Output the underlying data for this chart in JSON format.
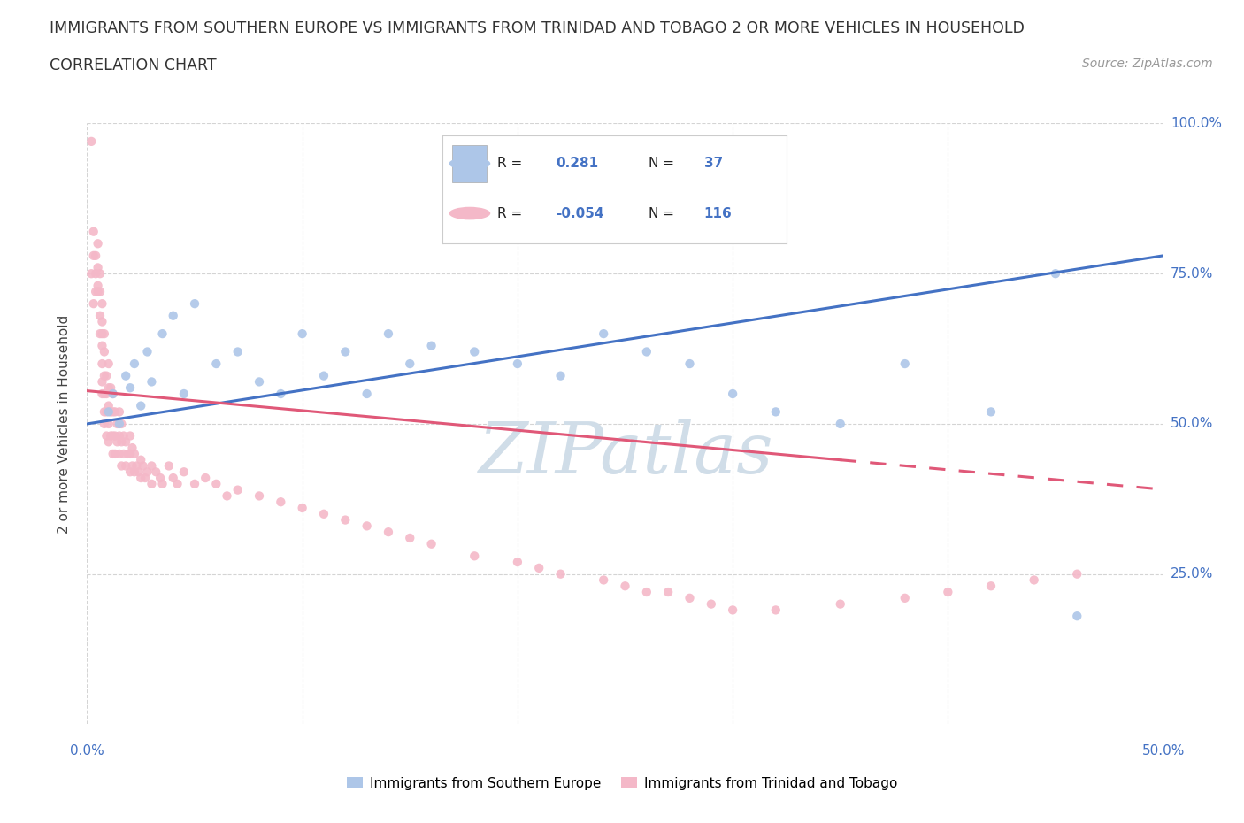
{
  "title_line1": "IMMIGRANTS FROM SOUTHERN EUROPE VS IMMIGRANTS FROM TRINIDAD AND TOBAGO 2 OR MORE VEHICLES IN HOUSEHOLD",
  "title_line2": "CORRELATION CHART",
  "source_text": "Source: ZipAtlas.com",
  "ylabel": "2 or more Vehicles in Household",
  "legend1_label": "Immigrants from Southern Europe",
  "legend2_label": "Immigrants from Trinidad and Tobago",
  "R1": 0.281,
  "N1": 37,
  "R2": -0.054,
  "N2": 116,
  "blue_color": "#adc6e8",
  "blue_line_color": "#4472c4",
  "pink_color": "#f4b8c8",
  "pink_line_color": "#e05878",
  "watermark_color": "#d0dde8",
  "xmin": 0.0,
  "xmax": 0.5,
  "ymin": 0.0,
  "ymax": 1.0,
  "blue_scatter_x": [
    0.01,
    0.012,
    0.015,
    0.018,
    0.02,
    0.022,
    0.025,
    0.028,
    0.03,
    0.035,
    0.04,
    0.045,
    0.05,
    0.06,
    0.07,
    0.08,
    0.09,
    0.1,
    0.11,
    0.12,
    0.13,
    0.14,
    0.15,
    0.16,
    0.18,
    0.2,
    0.22,
    0.24,
    0.26,
    0.28,
    0.3,
    0.32,
    0.35,
    0.38,
    0.42,
    0.45,
    0.46
  ],
  "blue_scatter_y": [
    0.52,
    0.55,
    0.5,
    0.58,
    0.56,
    0.6,
    0.53,
    0.62,
    0.57,
    0.65,
    0.68,
    0.55,
    0.7,
    0.6,
    0.62,
    0.57,
    0.55,
    0.65,
    0.58,
    0.62,
    0.55,
    0.65,
    0.6,
    0.63,
    0.62,
    0.6,
    0.58,
    0.65,
    0.62,
    0.6,
    0.55,
    0.52,
    0.5,
    0.6,
    0.52,
    0.75,
    0.18
  ],
  "pink_scatter_x": [
    0.002,
    0.002,
    0.003,
    0.003,
    0.003,
    0.004,
    0.004,
    0.004,
    0.005,
    0.005,
    0.005,
    0.005,
    0.006,
    0.006,
    0.006,
    0.006,
    0.007,
    0.007,
    0.007,
    0.007,
    0.007,
    0.007,
    0.007,
    0.008,
    0.008,
    0.008,
    0.008,
    0.008,
    0.008,
    0.009,
    0.009,
    0.009,
    0.009,
    0.01,
    0.01,
    0.01,
    0.01,
    0.01,
    0.011,
    0.011,
    0.011,
    0.012,
    0.012,
    0.012,
    0.012,
    0.013,
    0.013,
    0.013,
    0.014,
    0.014,
    0.015,
    0.015,
    0.015,
    0.016,
    0.016,
    0.016,
    0.017,
    0.017,
    0.018,
    0.018,
    0.019,
    0.02,
    0.02,
    0.02,
    0.021,
    0.021,
    0.022,
    0.022,
    0.023,
    0.024,
    0.025,
    0.025,
    0.026,
    0.027,
    0.028,
    0.03,
    0.03,
    0.032,
    0.034,
    0.035,
    0.038,
    0.04,
    0.042,
    0.045,
    0.05,
    0.055,
    0.06,
    0.065,
    0.07,
    0.08,
    0.09,
    0.1,
    0.11,
    0.12,
    0.13,
    0.14,
    0.15,
    0.16,
    0.18,
    0.2,
    0.21,
    0.22,
    0.24,
    0.25,
    0.26,
    0.27,
    0.28,
    0.29,
    0.3,
    0.32,
    0.35,
    0.38,
    0.4,
    0.42,
    0.44,
    0.46
  ],
  "pink_scatter_y": [
    0.97,
    0.75,
    0.82,
    0.78,
    0.7,
    0.72,
    0.75,
    0.78,
    0.73,
    0.76,
    0.72,
    0.8,
    0.75,
    0.72,
    0.68,
    0.65,
    0.7,
    0.67,
    0.65,
    0.63,
    0.6,
    0.57,
    0.55,
    0.65,
    0.62,
    0.58,
    0.55,
    0.52,
    0.5,
    0.58,
    0.55,
    0.52,
    0.48,
    0.6,
    0.56,
    0.53,
    0.5,
    0.47,
    0.56,
    0.52,
    0.48,
    0.55,
    0.52,
    0.48,
    0.45,
    0.52,
    0.48,
    0.45,
    0.5,
    0.47,
    0.52,
    0.48,
    0.45,
    0.5,
    0.47,
    0.43,
    0.48,
    0.45,
    0.47,
    0.43,
    0.45,
    0.48,
    0.45,
    0.42,
    0.46,
    0.43,
    0.45,
    0.42,
    0.43,
    0.42,
    0.44,
    0.41,
    0.43,
    0.41,
    0.42,
    0.43,
    0.4,
    0.42,
    0.41,
    0.4,
    0.43,
    0.41,
    0.4,
    0.42,
    0.4,
    0.41,
    0.4,
    0.38,
    0.39,
    0.38,
    0.37,
    0.36,
    0.35,
    0.34,
    0.33,
    0.32,
    0.31,
    0.3,
    0.28,
    0.27,
    0.26,
    0.25,
    0.24,
    0.23,
    0.22,
    0.22,
    0.21,
    0.2,
    0.19,
    0.19,
    0.2,
    0.21,
    0.22,
    0.23,
    0.24,
    0.25
  ]
}
